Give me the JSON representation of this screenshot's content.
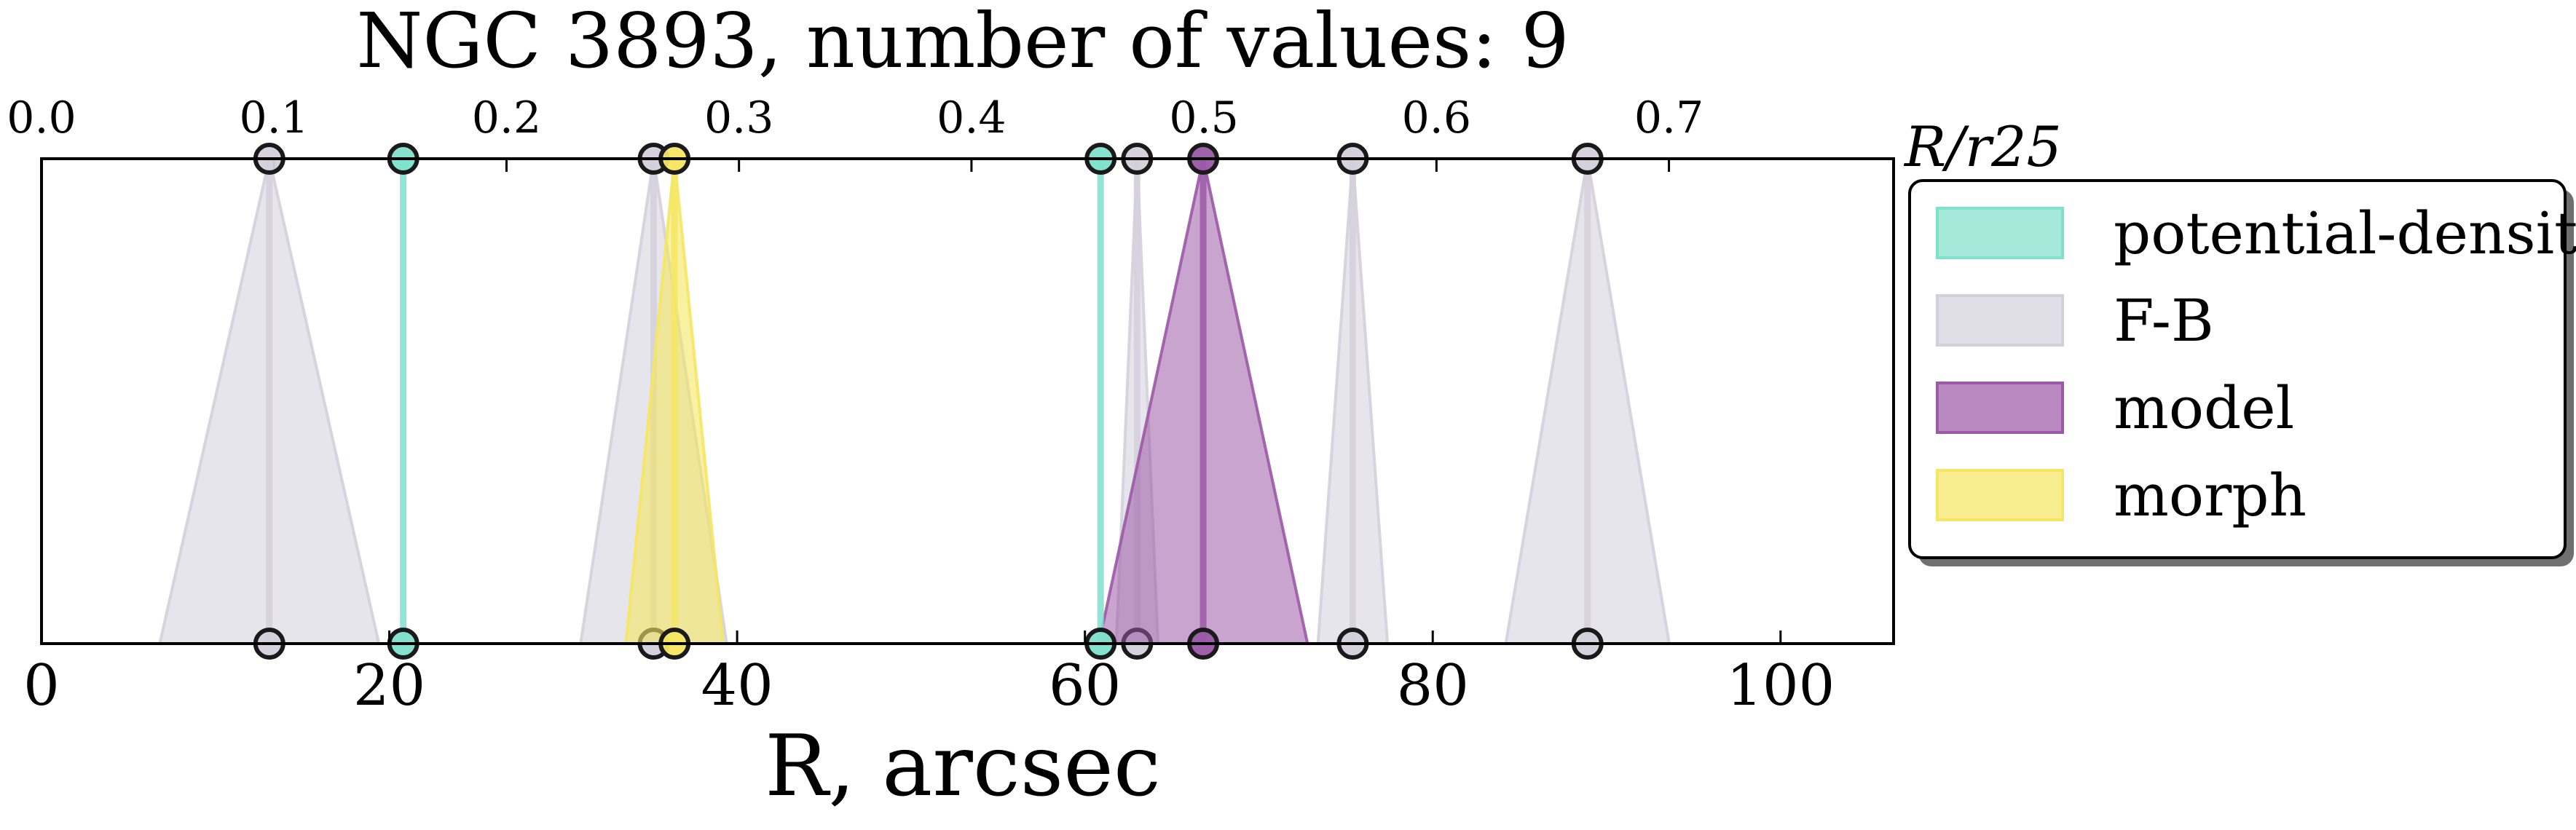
{
  "chart_data": {
    "type": "scatter",
    "title": "NGC 3893, number of values: 9",
    "xlabel": "R, arcsec",
    "x2label": "R/r25",
    "xlim": [
      0,
      106.5
    ],
    "x_ticks": [
      "0",
      "20",
      "40",
      "60",
      "80",
      "100"
    ],
    "x2_ticks": [
      "0.0",
      "0.1",
      "0.2",
      "0.3",
      "0.4",
      "0.5",
      "0.6",
      "0.7"
    ],
    "x2_per_x": 0.00748,
    "legend_position": "right",
    "grid": false,
    "series": [
      {
        "name": "potential-density",
        "color": "#7fe0cc",
        "values": [
          {
            "r": 20.8,
            "err": 0
          },
          {
            "r": 60.9,
            "err": 0
          }
        ]
      },
      {
        "name": "F-B",
        "color": "#d3d0dc",
        "values": [
          {
            "r": 13.1,
            "err": 6.3
          },
          {
            "r": 35.2,
            "err": 4.2
          },
          {
            "r": 63.0,
            "err": 1.2
          },
          {
            "r": 75.4,
            "err": 2.0
          },
          {
            "r": 88.9,
            "err": 4.7
          }
        ]
      },
      {
        "name": "model",
        "color": "#9b59a6",
        "values": [
          {
            "r": 66.8,
            "err": 6.0
          }
        ]
      },
      {
        "name": "morph",
        "color": "#f5e663",
        "values": [
          {
            "r": 36.4,
            "err": 2.8
          }
        ]
      }
    ]
  }
}
